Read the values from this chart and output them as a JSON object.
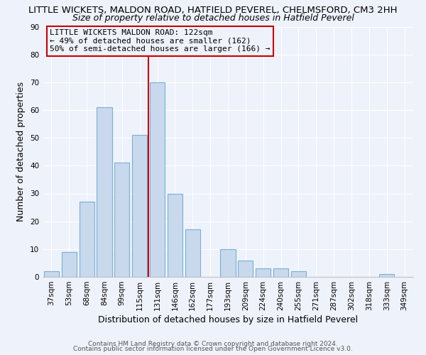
{
  "title": "LITTLE WICKETS, MALDON ROAD, HATFIELD PEVEREL, CHELMSFORD, CM3 2HH",
  "subtitle": "Size of property relative to detached houses in Hatfield Peverel",
  "xlabel": "Distribution of detached houses by size in Hatfield Peverel",
  "ylabel": "Number of detached properties",
  "bar_labels": [
    "37sqm",
    "53sqm",
    "68sqm",
    "84sqm",
    "99sqm",
    "115sqm",
    "131sqm",
    "146sqm",
    "162sqm",
    "177sqm",
    "193sqm",
    "209sqm",
    "224sqm",
    "240sqm",
    "255sqm",
    "271sqm",
    "287sqm",
    "302sqm",
    "318sqm",
    "333sqm",
    "349sqm"
  ],
  "bar_values": [
    2,
    9,
    27,
    61,
    41,
    51,
    70,
    30,
    17,
    0,
    10,
    6,
    3,
    3,
    2,
    0,
    0,
    0,
    0,
    1,
    0
  ],
  "bar_color": "#c8d9ed",
  "bar_edgecolor": "#7aafd4",
  "vline_x": 5.5,
  "vline_color": "#cc0000",
  "ylim": [
    0,
    90
  ],
  "yticks": [
    0,
    10,
    20,
    30,
    40,
    50,
    60,
    70,
    80,
    90
  ],
  "annotation_lines": [
    "LITTLE WICKETS MALDON ROAD: 122sqm",
    "← 49% of detached houses are smaller (162)",
    "50% of semi-detached houses are larger (166) →"
  ],
  "annotation_box_color": "#cc0000",
  "footer1": "Contains HM Land Registry data © Crown copyright and database right 2024.",
  "footer2": "Contains public sector information licensed under the Open Government Licence v3.0.",
  "bg_color": "#eef2fa",
  "grid_color": "#ffffff",
  "title_fontsize": 9.5,
  "subtitle_fontsize": 9,
  "axis_label_fontsize": 9,
  "tick_fontsize": 7.5,
  "footer_fontsize": 6.5
}
